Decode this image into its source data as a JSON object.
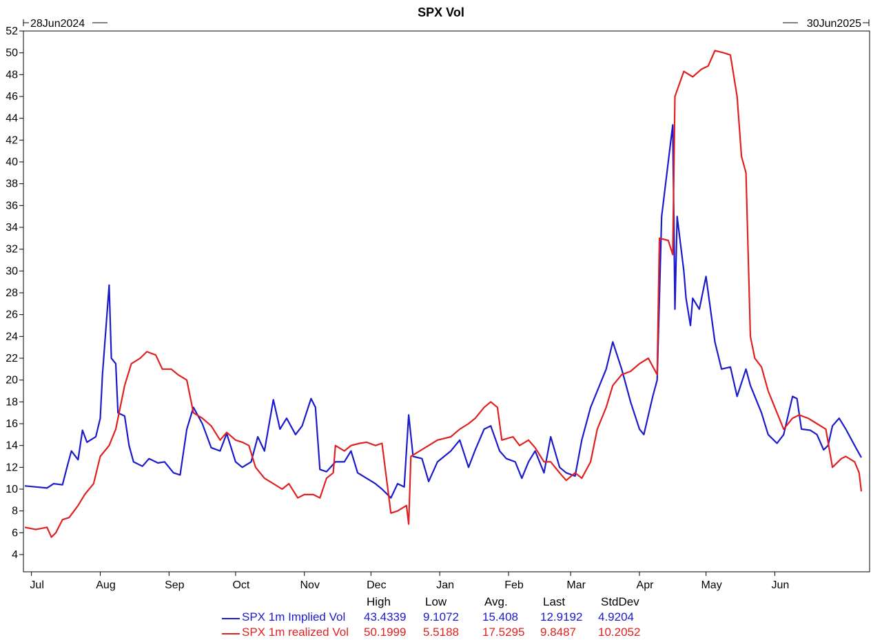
{
  "chart_data": {
    "type": "line",
    "title": "SPX Vol",
    "start_label": "28Jun2024",
    "end_label": "30Jun2025",
    "ylim": [
      4,
      52
    ],
    "y_ticks": [
      4,
      6,
      8,
      10,
      12,
      14,
      16,
      18,
      20,
      22,
      24,
      26,
      28,
      30,
      32,
      34,
      36,
      38,
      40,
      42,
      44,
      46,
      48,
      50,
      52
    ],
    "x_range": [
      "2024-06-28",
      "2025-06-30"
    ],
    "x_ticks": [
      {
        "label": "Jul",
        "date": "2024-07-01"
      },
      {
        "label": "Aug",
        "date": "2024-08-01"
      },
      {
        "label": "Sep",
        "date": "2024-09-01"
      },
      {
        "label": "Oct",
        "date": "2024-10-01"
      },
      {
        "label": "Nov",
        "date": "2024-11-01"
      },
      {
        "label": "Dec",
        "date": "2024-12-01"
      },
      {
        "label": "Jan",
        "date": "2025-01-01"
      },
      {
        "label": "Feb",
        "date": "2025-02-01"
      },
      {
        "label": "Mar",
        "date": "2025-03-01"
      },
      {
        "label": "Apr",
        "date": "2025-04-01"
      },
      {
        "label": "May",
        "date": "2025-05-01"
      },
      {
        "label": "Jun",
        "date": "2025-06-01"
      }
    ],
    "grid": false,
    "stats_headers": [
      "High",
      "Low",
      "Avg.",
      "Last",
      "StdDev"
    ],
    "series": [
      {
        "name": "SPX 1m Implied Vol",
        "color": "#1a1acc",
        "stats": [
          "43.4339",
          "9.1072",
          "15.408",
          "12.9192",
          "4.9204"
        ],
        "points": [
          [
            "2024-06-28",
            10.3
          ],
          [
            "2024-07-03",
            10.2
          ],
          [
            "2024-07-08",
            10.1
          ],
          [
            "2024-07-11",
            10.5
          ],
          [
            "2024-07-15",
            10.4
          ],
          [
            "2024-07-17",
            12.0
          ],
          [
            "2024-07-19",
            13.5
          ],
          [
            "2024-07-22",
            12.7
          ],
          [
            "2024-07-24",
            15.4
          ],
          [
            "2024-07-26",
            14.3
          ],
          [
            "2024-07-30",
            14.8
          ],
          [
            "2024-08-01",
            16.5
          ],
          [
            "2024-08-02",
            20.5
          ],
          [
            "2024-08-05",
            28.7
          ],
          [
            "2024-08-06",
            22.0
          ],
          [
            "2024-08-08",
            21.5
          ],
          [
            "2024-08-09",
            17.0
          ],
          [
            "2024-08-12",
            16.7
          ],
          [
            "2024-08-14",
            14.0
          ],
          [
            "2024-08-16",
            12.5
          ],
          [
            "2024-08-20",
            12.1
          ],
          [
            "2024-08-23",
            12.8
          ],
          [
            "2024-08-27",
            12.4
          ],
          [
            "2024-08-30",
            12.5
          ],
          [
            "2024-09-03",
            11.5
          ],
          [
            "2024-09-06",
            11.3
          ],
          [
            "2024-09-09",
            15.5
          ],
          [
            "2024-09-12",
            17.5
          ],
          [
            "2024-09-16",
            16.0
          ],
          [
            "2024-09-20",
            13.8
          ],
          [
            "2024-09-24",
            13.5
          ],
          [
            "2024-09-27",
            15.1
          ],
          [
            "2024-10-01",
            12.5
          ],
          [
            "2024-10-04",
            12.0
          ],
          [
            "2024-10-08",
            12.5
          ],
          [
            "2024-10-11",
            14.8
          ],
          [
            "2024-10-14",
            13.5
          ],
          [
            "2024-10-18",
            18.2
          ],
          [
            "2024-10-21",
            15.5
          ],
          [
            "2024-10-24",
            16.5
          ],
          [
            "2024-10-28",
            15.0
          ],
          [
            "2024-10-31",
            15.8
          ],
          [
            "2024-11-04",
            18.3
          ],
          [
            "2024-11-06",
            17.5
          ],
          [
            "2024-11-08",
            11.8
          ],
          [
            "2024-11-11",
            11.6
          ],
          [
            "2024-11-15",
            12.5
          ],
          [
            "2024-11-19",
            12.5
          ],
          [
            "2024-11-22",
            13.5
          ],
          [
            "2024-11-25",
            11.5
          ],
          [
            "2024-11-29",
            11.0
          ],
          [
            "2024-12-03",
            10.5
          ],
          [
            "2024-12-06",
            10.0
          ],
          [
            "2024-12-10",
            9.2
          ],
          [
            "2024-12-13",
            10.5
          ],
          [
            "2024-12-16",
            10.2
          ],
          [
            "2024-12-18",
            16.8
          ],
          [
            "2024-12-20",
            13.0
          ],
          [
            "2024-12-24",
            12.8
          ],
          [
            "2024-12-27",
            10.7
          ],
          [
            "2024-12-31",
            12.5
          ],
          [
            "2025-01-06",
            13.5
          ],
          [
            "2025-01-10",
            14.5
          ],
          [
            "2025-01-14",
            12.0
          ],
          [
            "2025-01-17",
            13.6
          ],
          [
            "2025-01-21",
            15.5
          ],
          [
            "2025-01-24",
            15.8
          ],
          [
            "2025-01-28",
            13.5
          ],
          [
            "2025-01-31",
            12.8
          ],
          [
            "2025-02-04",
            12.5
          ],
          [
            "2025-02-07",
            11.0
          ],
          [
            "2025-02-10",
            12.5
          ],
          [
            "2025-02-13",
            13.5
          ],
          [
            "2025-02-17",
            11.5
          ],
          [
            "2025-02-20",
            14.8
          ],
          [
            "2025-02-24",
            12.0
          ],
          [
            "2025-02-27",
            11.5
          ],
          [
            "2025-03-03",
            11.2
          ],
          [
            "2025-03-06",
            14.5
          ],
          [
            "2025-03-10",
            17.5
          ],
          [
            "2025-03-13",
            19.0
          ],
          [
            "2025-03-17",
            21.0
          ],
          [
            "2025-03-20",
            23.5
          ],
          [
            "2025-03-24",
            21.0
          ],
          [
            "2025-03-26",
            19.5
          ],
          [
            "2025-03-28",
            18.0
          ],
          [
            "2025-04-01",
            15.5
          ],
          [
            "2025-04-03",
            15.0
          ],
          [
            "2025-04-07",
            18.5
          ],
          [
            "2025-04-09",
            20.0
          ],
          [
            "2025-04-11",
            35.0
          ],
          [
            "2025-04-14",
            40.0
          ],
          [
            "2025-04-16",
            43.4
          ],
          [
            "2025-04-17",
            26.5
          ],
          [
            "2025-04-18",
            35.0
          ],
          [
            "2025-04-21",
            30.0
          ],
          [
            "2025-04-22",
            27.5
          ],
          [
            "2025-04-24",
            25.0
          ],
          [
            "2025-04-25",
            27.5
          ],
          [
            "2025-04-28",
            26.5
          ],
          [
            "2025-05-01",
            29.5
          ],
          [
            "2025-05-05",
            23.5
          ],
          [
            "2025-05-08",
            21.0
          ],
          [
            "2025-05-12",
            21.2
          ],
          [
            "2025-05-15",
            18.5
          ],
          [
            "2025-05-19",
            21.0
          ],
          [
            "2025-05-21",
            19.5
          ],
          [
            "2025-05-26",
            17.0
          ],
          [
            "2025-05-29",
            15.0
          ],
          [
            "2025-06-02",
            14.2
          ],
          [
            "2025-06-05",
            15.0
          ],
          [
            "2025-06-09",
            18.5
          ],
          [
            "2025-06-11",
            18.3
          ],
          [
            "2025-06-13",
            15.5
          ],
          [
            "2025-06-17",
            15.4
          ],
          [
            "2025-06-20",
            15.0
          ],
          [
            "2025-06-23",
            13.6
          ],
          [
            "2025-06-25",
            14.0
          ],
          [
            "2025-06-27",
            15.8
          ],
          [
            "2025-06-30",
            16.5
          ],
          [
            "2025-07-03",
            15.5
          ],
          [
            "2025-07-07",
            14.0
          ],
          [
            "2025-07-10",
            12.9
          ]
        ]
      },
      {
        "name": "SPX 1m realized Vol",
        "color": "#e02020",
        "stats": [
          "50.1999",
          "5.5188",
          "17.5295",
          "9.8487",
          "10.2052"
        ],
        "points": [
          [
            "2024-06-28",
            6.5
          ],
          [
            "2024-07-03",
            6.3
          ],
          [
            "2024-07-08",
            6.5
          ],
          [
            "2024-07-10",
            5.6
          ],
          [
            "2024-07-12",
            6.0
          ],
          [
            "2024-07-15",
            7.2
          ],
          [
            "2024-07-18",
            7.4
          ],
          [
            "2024-07-22",
            8.5
          ],
          [
            "2024-07-25",
            9.5
          ],
          [
            "2024-07-29",
            10.5
          ],
          [
            "2024-08-01",
            13.0
          ],
          [
            "2024-08-05",
            14.0
          ],
          [
            "2024-08-08",
            15.5
          ],
          [
            "2024-08-12",
            19.5
          ],
          [
            "2024-08-15",
            21.5
          ],
          [
            "2024-08-19",
            22.0
          ],
          [
            "2024-08-22",
            22.6
          ],
          [
            "2024-08-26",
            22.3
          ],
          [
            "2024-08-29",
            21.0
          ],
          [
            "2024-09-02",
            21.0
          ],
          [
            "2024-09-05",
            20.5
          ],
          [
            "2024-09-09",
            20.0
          ],
          [
            "2024-09-12",
            17.0
          ],
          [
            "2024-09-16",
            16.5
          ],
          [
            "2024-09-20",
            15.8
          ],
          [
            "2024-09-24",
            14.5
          ],
          [
            "2024-09-27",
            15.2
          ],
          [
            "2024-10-01",
            14.5
          ],
          [
            "2024-10-04",
            14.3
          ],
          [
            "2024-10-07",
            14.0
          ],
          [
            "2024-10-10",
            12.0
          ],
          [
            "2024-10-14",
            11.0
          ],
          [
            "2024-10-18",
            10.5
          ],
          [
            "2024-10-22",
            10.0
          ],
          [
            "2024-10-25",
            10.5
          ],
          [
            "2024-10-29",
            9.2
          ],
          [
            "2024-11-01",
            9.5
          ],
          [
            "2024-11-05",
            9.5
          ],
          [
            "2024-11-08",
            9.2
          ],
          [
            "2024-11-11",
            11.0
          ],
          [
            "2024-11-14",
            11.5
          ],
          [
            "2024-11-15",
            14.0
          ],
          [
            "2024-11-19",
            13.5
          ],
          [
            "2024-11-22",
            14.0
          ],
          [
            "2024-11-26",
            14.2
          ],
          [
            "2024-11-29",
            14.3
          ],
          [
            "2024-12-03",
            14.0
          ],
          [
            "2024-12-06",
            14.2
          ],
          [
            "2024-12-10",
            7.8
          ],
          [
            "2024-12-13",
            8.0
          ],
          [
            "2024-12-17",
            8.5
          ],
          [
            "2024-12-18",
            6.8
          ],
          [
            "2024-12-19",
            13.0
          ],
          [
            "2024-12-23",
            13.5
          ],
          [
            "2024-12-27",
            14.0
          ],
          [
            "2024-12-31",
            14.5
          ],
          [
            "2025-01-06",
            14.8
          ],
          [
            "2025-01-10",
            15.5
          ],
          [
            "2025-01-14",
            16.0
          ],
          [
            "2025-01-17",
            16.5
          ],
          [
            "2025-01-21",
            17.5
          ],
          [
            "2025-01-24",
            18.0
          ],
          [
            "2025-01-27",
            17.5
          ],
          [
            "2025-01-29",
            14.5
          ],
          [
            "2025-02-03",
            14.8
          ],
          [
            "2025-02-06",
            14.0
          ],
          [
            "2025-02-10",
            14.5
          ],
          [
            "2025-02-13",
            13.8
          ],
          [
            "2025-02-17",
            12.5
          ],
          [
            "2025-02-20",
            12.5
          ],
          [
            "2025-02-24",
            11.5
          ],
          [
            "2025-02-27",
            10.8
          ],
          [
            "2025-03-03",
            11.5
          ],
          [
            "2025-03-06",
            11.0
          ],
          [
            "2025-03-10",
            12.5
          ],
          [
            "2025-03-13",
            15.5
          ],
          [
            "2025-03-17",
            17.5
          ],
          [
            "2025-03-20",
            19.5
          ],
          [
            "2025-03-24",
            20.5
          ],
          [
            "2025-03-28",
            20.8
          ],
          [
            "2025-04-01",
            21.5
          ],
          [
            "2025-04-05",
            22.0
          ],
          [
            "2025-04-09",
            20.5
          ],
          [
            "2025-04-10",
            33.0
          ],
          [
            "2025-04-14",
            32.8
          ],
          [
            "2025-04-16",
            31.5
          ],
          [
            "2025-04-17",
            46.0
          ],
          [
            "2025-04-21",
            48.3
          ],
          [
            "2025-04-25",
            47.8
          ],
          [
            "2025-04-29",
            48.5
          ],
          [
            "2025-05-02",
            48.8
          ],
          [
            "2025-05-05",
            50.2
          ],
          [
            "2025-05-09",
            50.0
          ],
          [
            "2025-05-12",
            49.8
          ],
          [
            "2025-05-15",
            46.0
          ],
          [
            "2025-05-17",
            40.5
          ],
          [
            "2025-05-19",
            39.0
          ],
          [
            "2025-05-21",
            24.0
          ],
          [
            "2025-05-23",
            22.0
          ],
          [
            "2025-05-26",
            21.2
          ],
          [
            "2025-05-29",
            19.0
          ],
          [
            "2025-06-02",
            17.0
          ],
          [
            "2025-06-05",
            15.5
          ],
          [
            "2025-06-09",
            16.5
          ],
          [
            "2025-06-12",
            16.8
          ],
          [
            "2025-06-16",
            16.5
          ],
          [
            "2025-06-20",
            16.0
          ],
          [
            "2025-06-24",
            15.5
          ],
          [
            "2025-06-27",
            12.0
          ],
          [
            "2025-07-01",
            12.8
          ],
          [
            "2025-07-03",
            13.0
          ],
          [
            "2025-07-07",
            12.5
          ],
          [
            "2025-07-09",
            11.5
          ],
          [
            "2025-07-10",
            9.8
          ]
        ]
      }
    ]
  }
}
